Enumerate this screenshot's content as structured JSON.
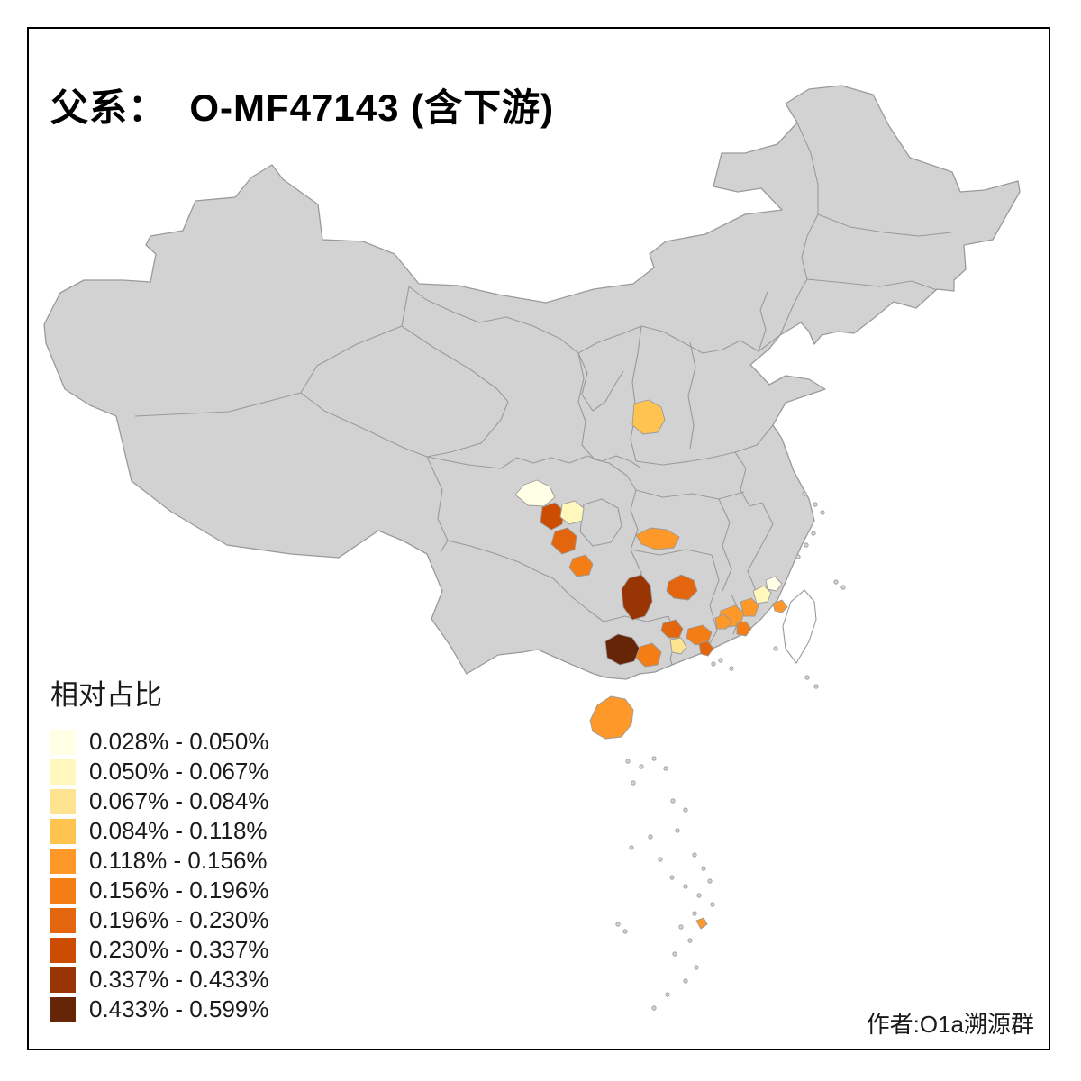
{
  "title": {
    "full": "父系：  O-MF47143 (含下游)"
  },
  "legend": {
    "title": "相对占比",
    "bins": [
      {
        "range": "0.028% - 0.050%",
        "color": "#FFFFE5"
      },
      {
        "range": "0.050% - 0.067%",
        "color": "#FFF7BC"
      },
      {
        "range": "0.067% - 0.084%",
        "color": "#FEE391"
      },
      {
        "range": "0.084% - 0.118%",
        "color": "#FEC44F"
      },
      {
        "range": "0.118% - 0.156%",
        "color": "#FE9929"
      },
      {
        "range": "0.156% - 0.196%",
        "color": "#F57D15"
      },
      {
        "range": "0.196% - 0.230%",
        "color": "#E3650D"
      },
      {
        "range": "0.230% - 0.337%",
        "color": "#CC4C02"
      },
      {
        "range": "0.337% - 0.433%",
        "color": "#993404"
      },
      {
        "range": "0.433% - 0.599%",
        "color": "#662506"
      }
    ]
  },
  "credit": "作者:O1a溯源群",
  "map": {
    "land_color": "#D2D2D2",
    "border_color": "#9A9A9A",
    "no_data_fill": "#FFFFFF",
    "frame_color": "#000000"
  }
}
